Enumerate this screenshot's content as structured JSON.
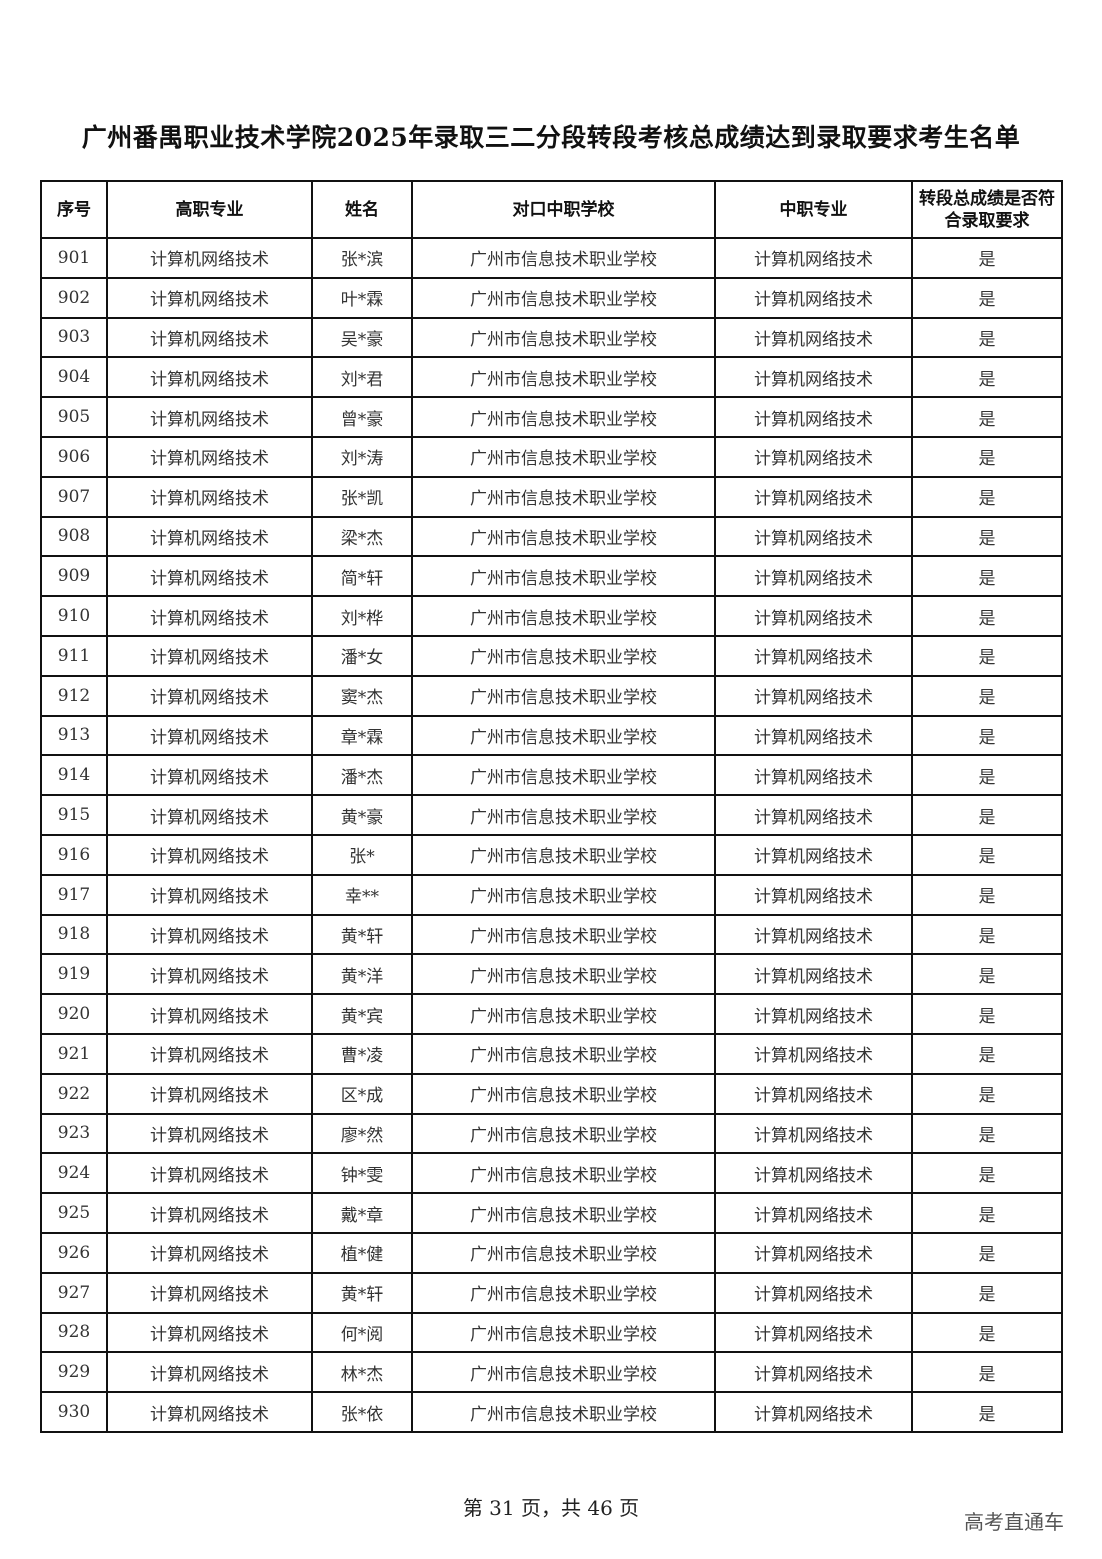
{
  "title": "广州番禺职业技术学院2025年录取三二分段转段考核总成绩达到录取要求考生名单",
  "table": {
    "headers": [
      "序号",
      "高职专业",
      "姓名",
      "对口中职学校",
      "中职专业",
      "转段总成绩是否符合录取要求"
    ],
    "rows": [
      [
        "901",
        "计算机网络技术",
        "张*滨",
        "广州市信息技术职业学校",
        "计算机网络技术",
        "是"
      ],
      [
        "902",
        "计算机网络技术",
        "叶*霖",
        "广州市信息技术职业学校",
        "计算机网络技术",
        "是"
      ],
      [
        "903",
        "计算机网络技术",
        "吴*豪",
        "广州市信息技术职业学校",
        "计算机网络技术",
        "是"
      ],
      [
        "904",
        "计算机网络技术",
        "刘*君",
        "广州市信息技术职业学校",
        "计算机网络技术",
        "是"
      ],
      [
        "905",
        "计算机网络技术",
        "曾*豪",
        "广州市信息技术职业学校",
        "计算机网络技术",
        "是"
      ],
      [
        "906",
        "计算机网络技术",
        "刘*涛",
        "广州市信息技术职业学校",
        "计算机网络技术",
        "是"
      ],
      [
        "907",
        "计算机网络技术",
        "张*凯",
        "广州市信息技术职业学校",
        "计算机网络技术",
        "是"
      ],
      [
        "908",
        "计算机网络技术",
        "梁*杰",
        "广州市信息技术职业学校",
        "计算机网络技术",
        "是"
      ],
      [
        "909",
        "计算机网络技术",
        "简*轩",
        "广州市信息技术职业学校",
        "计算机网络技术",
        "是"
      ],
      [
        "910",
        "计算机网络技术",
        "刘*桦",
        "广州市信息技术职业学校",
        "计算机网络技术",
        "是"
      ],
      [
        "911",
        "计算机网络技术",
        "潘*女",
        "广州市信息技术职业学校",
        "计算机网络技术",
        "是"
      ],
      [
        "912",
        "计算机网络技术",
        "窦*杰",
        "广州市信息技术职业学校",
        "计算机网络技术",
        "是"
      ],
      [
        "913",
        "计算机网络技术",
        "章*霖",
        "广州市信息技术职业学校",
        "计算机网络技术",
        "是"
      ],
      [
        "914",
        "计算机网络技术",
        "潘*杰",
        "广州市信息技术职业学校",
        "计算机网络技术",
        "是"
      ],
      [
        "915",
        "计算机网络技术",
        "黄*豪",
        "广州市信息技术职业学校",
        "计算机网络技术",
        "是"
      ],
      [
        "916",
        "计算机网络技术",
        "张*",
        "广州市信息技术职业学校",
        "计算机网络技术",
        "是"
      ],
      [
        "917",
        "计算机网络技术",
        "幸**",
        "广州市信息技术职业学校",
        "计算机网络技术",
        "是"
      ],
      [
        "918",
        "计算机网络技术",
        "黄*轩",
        "广州市信息技术职业学校",
        "计算机网络技术",
        "是"
      ],
      [
        "919",
        "计算机网络技术",
        "黄*洋",
        "广州市信息技术职业学校",
        "计算机网络技术",
        "是"
      ],
      [
        "920",
        "计算机网络技术",
        "黄*宾",
        "广州市信息技术职业学校",
        "计算机网络技术",
        "是"
      ],
      [
        "921",
        "计算机网络技术",
        "曹*凌",
        "广州市信息技术职业学校",
        "计算机网络技术",
        "是"
      ],
      [
        "922",
        "计算机网络技术",
        "区*成",
        "广州市信息技术职业学校",
        "计算机网络技术",
        "是"
      ],
      [
        "923",
        "计算机网络技术",
        "廖*然",
        "广州市信息技术职业学校",
        "计算机网络技术",
        "是"
      ],
      [
        "924",
        "计算机网络技术",
        "钟*雯",
        "广州市信息技术职业学校",
        "计算机网络技术",
        "是"
      ],
      [
        "925",
        "计算机网络技术",
        "戴*章",
        "广州市信息技术职业学校",
        "计算机网络技术",
        "是"
      ],
      [
        "926",
        "计算机网络技术",
        "植*健",
        "广州市信息技术职业学校",
        "计算机网络技术",
        "是"
      ],
      [
        "927",
        "计算机网络技术",
        "黄*轩",
        "广州市信息技术职业学校",
        "计算机网络技术",
        "是"
      ],
      [
        "928",
        "计算机网络技术",
        "何*阅",
        "广州市信息技术职业学校",
        "计算机网络技术",
        "是"
      ],
      [
        "929",
        "计算机网络技术",
        "林*杰",
        "广州市信息技术职业学校",
        "计算机网络技术",
        "是"
      ],
      [
        "930",
        "计算机网络技术",
        "张*依",
        "广州市信息技术职业学校",
        "计算机网络技术",
        "是"
      ]
    ]
  },
  "footer": "第 31 页，共 46 页",
  "watermark": "高考直通车"
}
